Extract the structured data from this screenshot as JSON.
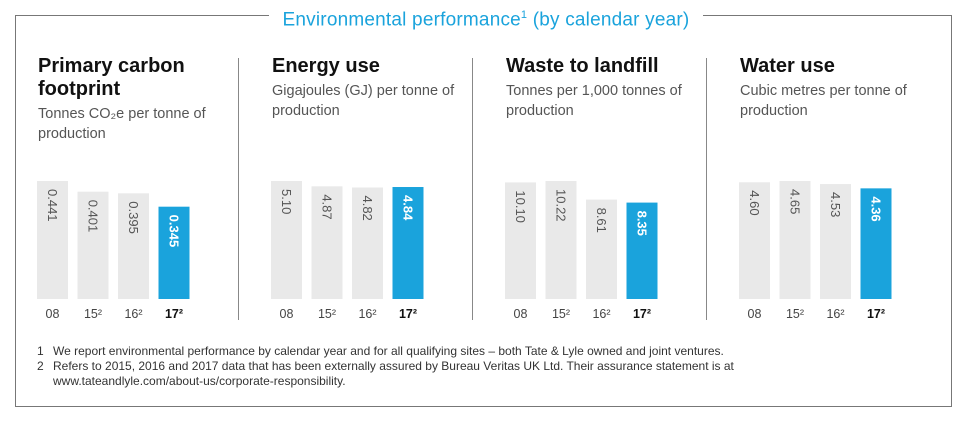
{
  "header": {
    "title": "Environmental performance",
    "title_sup": "1",
    "title_suffix": " (by calendar year)"
  },
  "colors": {
    "accent": "#1aa3dc",
    "bar_grey": "#e9e9e9"
  },
  "chart_data": [
    {
      "type": "bar",
      "title": "Primary carbon footprint",
      "subtitle": "Tonnes CO₂e per tonne of production",
      "categories": [
        "08",
        "15²",
        "16²",
        "17²"
      ],
      "values": [
        0.441,
        0.401,
        0.395,
        0.345
      ],
      "labels": [
        "0.441",
        "0.401",
        "0.395",
        "0.345"
      ],
      "highlight_index": 3
    },
    {
      "type": "bar",
      "title": "Energy use",
      "subtitle": "Gigajoules (GJ) per tonne of production",
      "categories": [
        "08",
        "15²",
        "16²",
        "17²"
      ],
      "values": [
        5.1,
        4.87,
        4.82,
        4.84
      ],
      "labels": [
        "5.10",
        "4.87",
        "4.82",
        "4.84"
      ],
      "highlight_index": 3
    },
    {
      "type": "bar",
      "title": "Waste to landfill",
      "subtitle": "Tonnes per 1,000 tonnes of production",
      "categories": [
        "08",
        "15²",
        "16²",
        "17²"
      ],
      "values": [
        10.1,
        10.22,
        8.61,
        8.35
      ],
      "labels": [
        "10.10",
        "10.22",
        "8.61",
        "8.35"
      ],
      "highlight_index": 3
    },
    {
      "type": "bar",
      "title": "Water use",
      "subtitle": "Cubic metres per tonne of production",
      "categories": [
        "08",
        "15²",
        "16²",
        "17²"
      ],
      "values": [
        4.6,
        4.65,
        4.53,
        4.36
      ],
      "labels": [
        "4.60",
        "4.65",
        "4.53",
        "4.36"
      ],
      "highlight_index": 3
    }
  ],
  "footnotes": [
    {
      "num": "1",
      "text": "We report environmental performance by calendar year and for all qualifying sites – both Tate & Lyle owned and joint ventures."
    },
    {
      "num": "2",
      "text": "Refers to 2015, 2016 and 2017 data that has been externally assured by Bureau Veritas UK Ltd. Their assurance statement is at"
    },
    {
      "num": "",
      "text": "www.tateandlyle.com/about-us/corporate-responsibility."
    }
  ]
}
